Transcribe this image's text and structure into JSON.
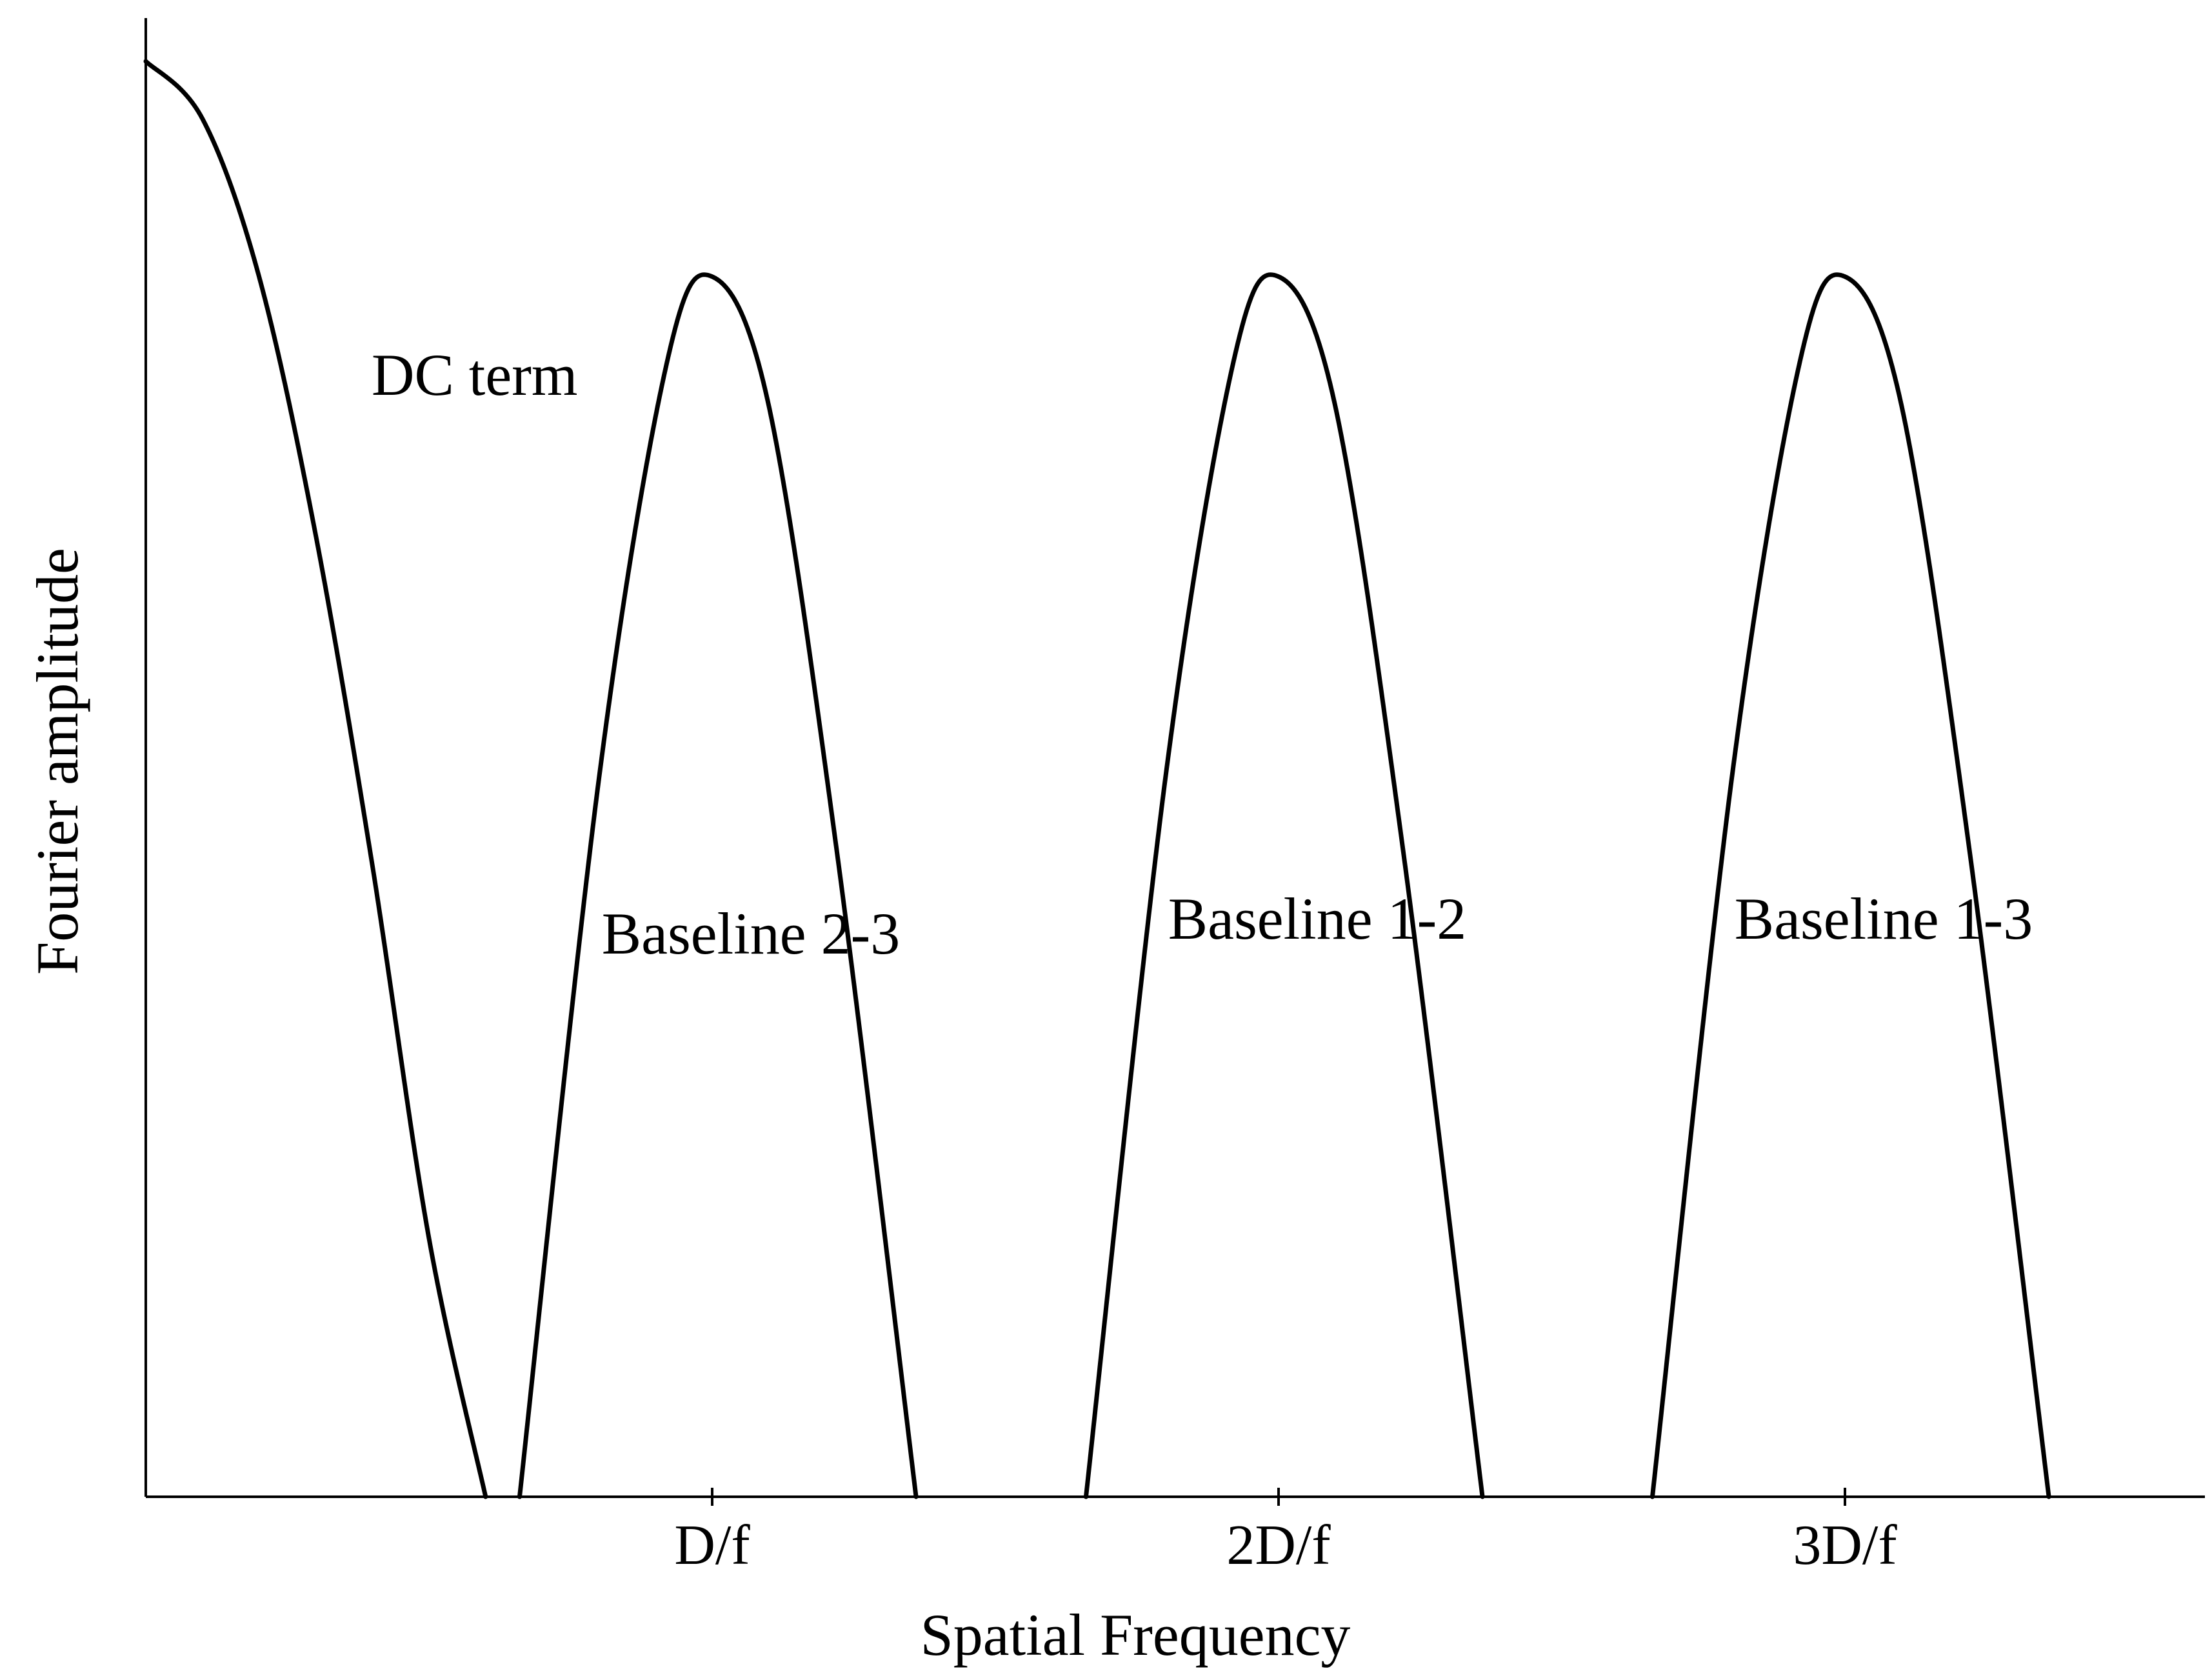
{
  "chart_data": {
    "type": "line",
    "xlabel": "Spatial Frequency",
    "ylabel": "Fourier amplitude",
    "xlim": [
      0,
      3.63
    ],
    "ylim": [
      0,
      1
    ],
    "grid": false,
    "x_ticks": [
      {
        "value": 1,
        "label": "D/f"
      },
      {
        "value": 2,
        "label": "2D/f"
      },
      {
        "value": 3,
        "label": "3D/f"
      }
    ],
    "series": [
      {
        "annotation": "DC term",
        "x": [
          0,
          0.1,
          0.2,
          0.3,
          0.4,
          0.5,
          0.6
        ],
        "y": [
          1,
          0.96,
          0.85,
          0.67,
          0.44,
          0.18,
          0
        ]
      },
      {
        "annotation": "Baseline 2-3",
        "x": [
          0.66,
          0.8,
          0.92,
          1.0,
          1.1,
          1.22,
          1.36
        ],
        "y": [
          0,
          0.5,
          0.79,
          0.85,
          0.76,
          0.45,
          0
        ]
      },
      {
        "annotation": "Baseline 1-2",
        "x": [
          1.66,
          1.8,
          1.92,
          2.0,
          2.1,
          2.22,
          2.36
        ],
        "y": [
          0,
          0.5,
          0.79,
          0.85,
          0.76,
          0.45,
          0
        ]
      },
      {
        "annotation": "Baseline 1-3",
        "x": [
          2.66,
          2.8,
          2.92,
          3.0,
          3.1,
          3.22,
          3.36
        ],
        "y": [
          0,
          0.5,
          0.79,
          0.85,
          0.76,
          0.45,
          0
        ]
      }
    ]
  }
}
